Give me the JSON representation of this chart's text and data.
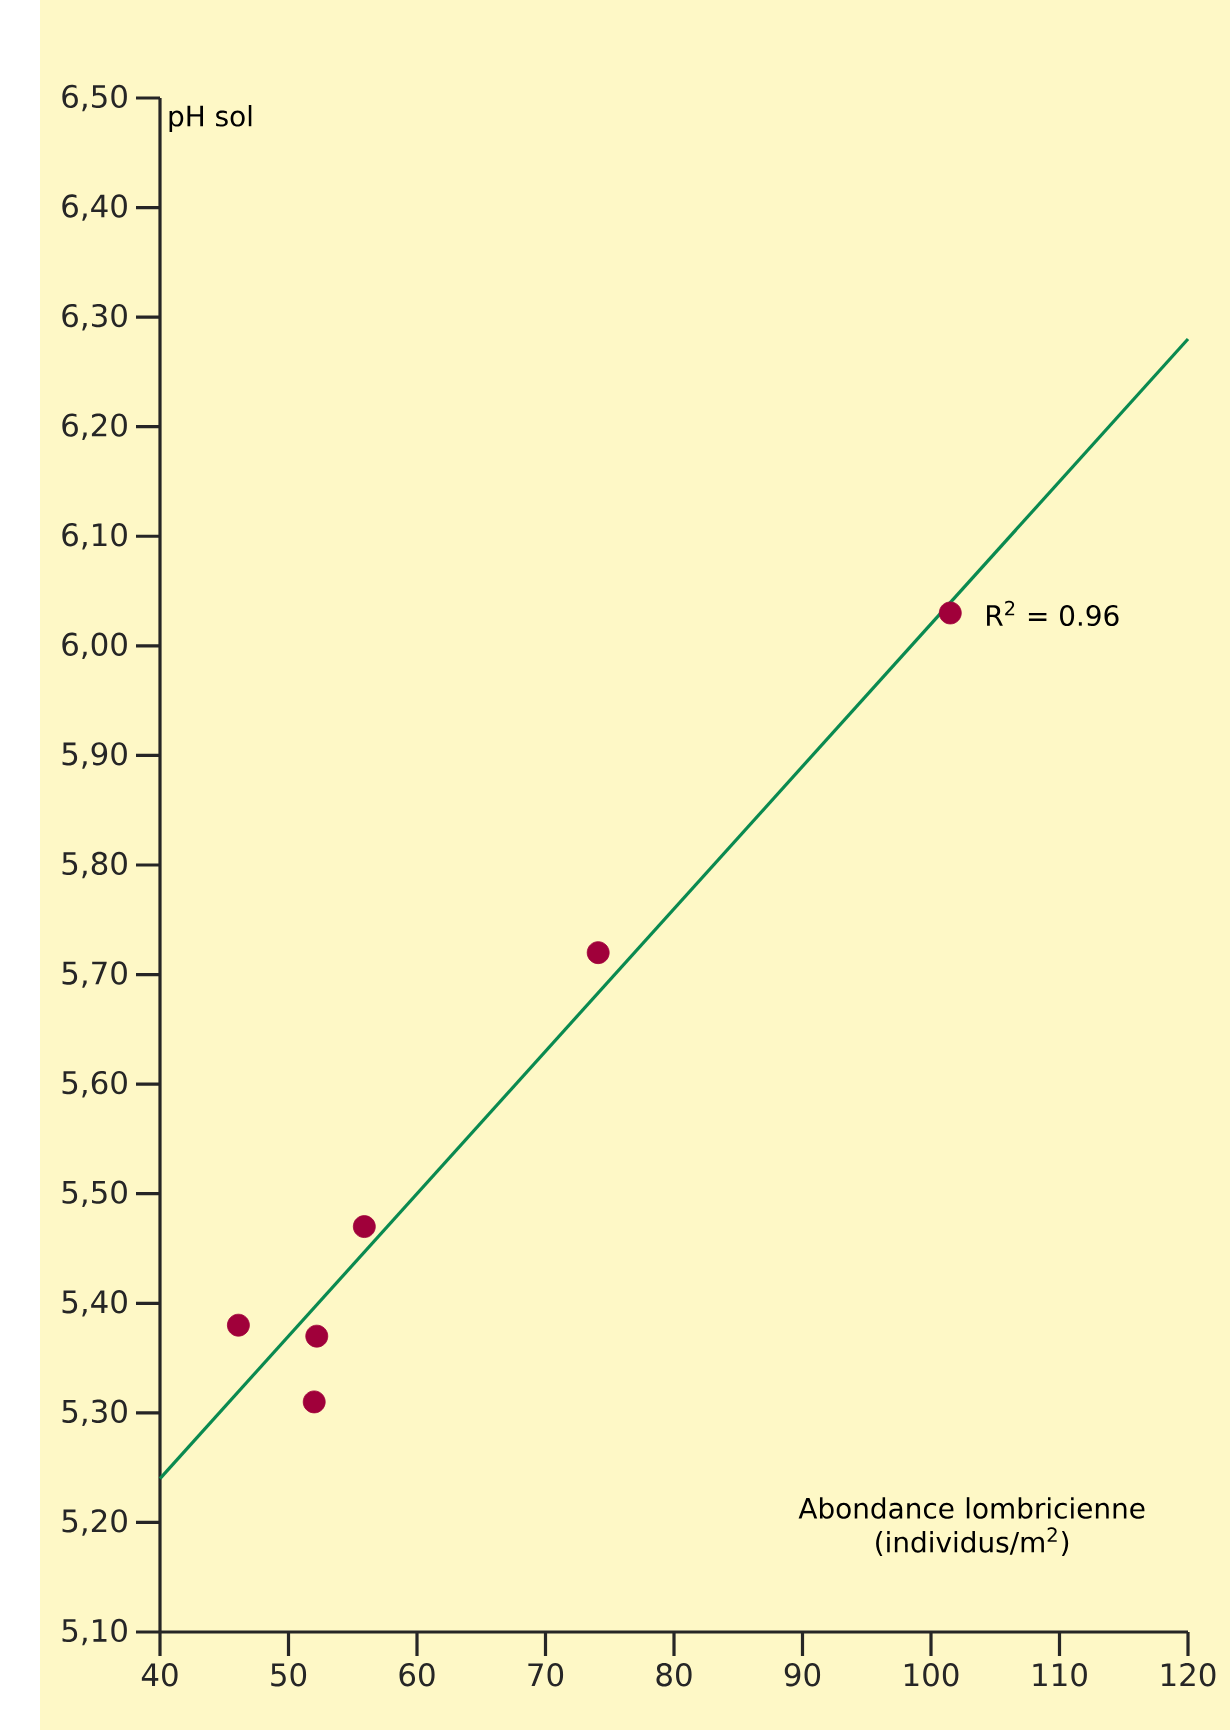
{
  "chart_data": {
    "type": "scatter",
    "ylabel": "pH sol",
    "xlabel": "Abondance lombricienne (individus/m$^{2}$)",
    "annotations": [
      "R$^{2}$ = 0.96"
    ],
    "marker": "circle",
    "xlim": [
      40,
      120
    ],
    "ylim": [
      5.1,
      6.5
    ],
    "xticks": [
      40,
      50,
      60,
      70,
      80,
      90,
      100,
      110,
      120
    ],
    "yticks": [
      {
        "value": 5.1,
        "label": "5,10"
      },
      {
        "value": 5.2,
        "label": "5,20"
      },
      {
        "value": 5.3,
        "label": "5,30"
      },
      {
        "value": 5.4,
        "label": "5,40"
      },
      {
        "value": 5.5,
        "label": "5,50"
      },
      {
        "value": 5.6,
        "label": "5,60"
      },
      {
        "value": 5.7,
        "label": "5,70"
      },
      {
        "value": 5.8,
        "label": "5,80"
      },
      {
        "value": 5.9,
        "label": "5,90"
      },
      {
        "value": 6.0,
        "label": "6,00"
      },
      {
        "value": 6.1,
        "label": "6,10"
      },
      {
        "value": 6.2,
        "label": "6,20"
      },
      {
        "value": 6.3,
        "label": "6,30"
      },
      {
        "value": 6.4,
        "label": "6,40"
      },
      {
        "value": 6.5,
        "label": "6,50"
      }
    ],
    "series": [
      {
        "type": "scatter",
        "color": "#a0003a",
        "x": [
          46.1,
          52.2,
          52.0,
          55.9,
          74.1,
          101.5
        ],
        "values": [
          5.38,
          5.37,
          5.31,
          5.47,
          5.72,
          6.03
        ]
      },
      {
        "type": "line",
        "color": "#0a8a50",
        "line_style": "solid",
        "marker": "none",
        "x": [
          40,
          120
        ],
        "values": [
          5.24,
          6.28
        ]
      }
    ]
  }
}
